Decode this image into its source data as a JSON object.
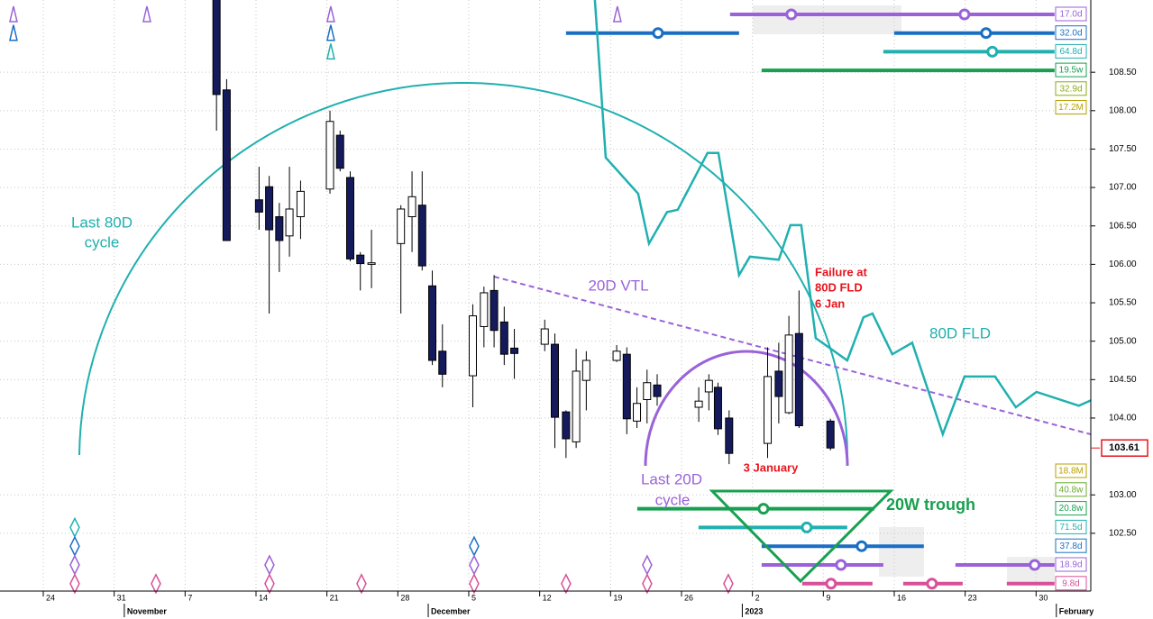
{
  "chart_data": {
    "type": "candlestick",
    "xlim": [
      -4.27,
      103.4
    ],
    "ylim": [
      101.76,
      109.44
    ],
    "grid": true,
    "xticks": [
      {
        "value": 0,
        "label": "24"
      },
      {
        "value": 7,
        "label": "31"
      },
      {
        "value": 14,
        "label": "7"
      },
      {
        "value": 21,
        "label": "14"
      },
      {
        "value": 28,
        "label": "21"
      },
      {
        "value": 35,
        "label": "28"
      },
      {
        "value": 42,
        "label": "5"
      },
      {
        "value": 49,
        "label": "12"
      },
      {
        "value": 56,
        "label": "19"
      },
      {
        "value": 63,
        "label": "26"
      },
      {
        "value": 70,
        "label": "2"
      },
      {
        "value": 77,
        "label": "9"
      },
      {
        "value": 84,
        "label": "16"
      },
      {
        "value": 91,
        "label": "23"
      },
      {
        "value": 98,
        "label": "30"
      }
    ],
    "month_ticks": [
      {
        "value": 8,
        "label": "November"
      },
      {
        "value": 38,
        "label": "December"
      },
      {
        "value": 69,
        "label": "2023"
      },
      {
        "value": 100,
        "label": "February"
      }
    ],
    "yticks": [
      {
        "value": 102.5,
        "label": "102.50"
      },
      {
        "value": 103,
        "label": "103.00"
      },
      {
        "value": 104,
        "label": "104.00"
      },
      {
        "value": 104.5,
        "label": "104.50"
      },
      {
        "value": 105,
        "label": "105.00"
      },
      {
        "value": 105.5,
        "label": "105.50"
      },
      {
        "value": 106,
        "label": "106.00"
      },
      {
        "value": 106.5,
        "label": "106.50"
      },
      {
        "value": 107,
        "label": "107.00"
      },
      {
        "value": 107.5,
        "label": "107.50"
      },
      {
        "value": 108,
        "label": "108.00"
      },
      {
        "value": 108.5,
        "label": "108.50"
      }
    ],
    "last_price": 103.61,
    "last_price_color": "#e8141c",
    "candles": {
      "up_color": "#ffffff",
      "down_color": "#141a5c",
      "x": [
        17.1,
        18.1,
        21.3,
        22.3,
        23.3,
        24.3,
        25.4,
        28.3,
        29.3,
        30.3,
        31.3,
        32.4,
        35.3,
        36.4,
        37.4,
        38.4,
        39.4,
        42.4,
        43.5,
        44.5,
        45.5,
        46.5,
        49.5,
        50.5,
        51.6,
        52.6,
        53.6,
        56.6,
        57.6,
        58.6,
        59.6,
        60.6,
        64.7,
        65.7,
        66.6,
        67.7,
        71.5,
        72.6,
        73.6,
        74.6,
        77.7
      ],
      "open": [
        109.5,
        108.27,
        106.84,
        107.01,
        106.62,
        106.37,
        106.62,
        106.98,
        107.68,
        107.13,
        106.12,
        106.0,
        106.27,
        106.62,
        106.77,
        105.72,
        104.87,
        104.55,
        105.19,
        105.66,
        105.25,
        104.91,
        104.96,
        104.96,
        104.08,
        103.69,
        104.49,
        104.75,
        104.83,
        103.96,
        104.24,
        104.43,
        104.14,
        104.34,
        104.4,
        104.0,
        103.67,
        104.61,
        104.07,
        105.1,
        103.96
      ],
      "high": [
        109.6,
        108.41,
        107.27,
        107.15,
        106.8,
        107.27,
        107.09,
        108.0,
        107.74,
        107.21,
        106.16,
        106.45,
        106.77,
        107.21,
        107.21,
        105.92,
        105.22,
        105.48,
        105.71,
        105.86,
        105.45,
        105.16,
        105.28,
        105.1,
        104.1,
        104.9,
        104.87,
        104.95,
        104.92,
        104.4,
        104.63,
        104.57,
        104.4,
        104.57,
        104.46,
        104.1,
        104.92,
        104.98,
        105.33,
        105.66,
        103.99
      ],
      "low": [
        107.74,
        106.31,
        106.45,
        105.36,
        105.9,
        106.1,
        106.33,
        106.92,
        107.21,
        106.04,
        105.66,
        105.69,
        105.36,
        106.16,
        105.92,
        104.69,
        104.4,
        104.14,
        104.92,
        104.92,
        104.69,
        104.51,
        104.87,
        103.61,
        103.48,
        103.61,
        104.1,
        104.73,
        103.79,
        103.87,
        103.93,
        104.16,
        103.95,
        104.1,
        103.78,
        103.4,
        103.48,
        103.93,
        104.05,
        103.87,
        103.58
      ],
      "close": [
        108.21,
        106.31,
        106.68,
        106.45,
        106.31,
        106.72,
        106.95,
        107.86,
        107.25,
        106.07,
        106.01,
        106.02,
        106.72,
        106.88,
        105.98,
        104.75,
        104.57,
        105.33,
        105.63,
        105.14,
        104.83,
        104.84,
        105.16,
        104.01,
        103.73,
        104.61,
        104.75,
        104.87,
        103.99,
        104.19,
        104.46,
        104.28,
        104.22,
        104.49,
        103.86,
        103.54,
        104.54,
        104.28,
        105.08,
        103.9,
        103.61
      ]
    },
    "fld": {
      "color": "#20b0b0",
      "x": [
        54.45,
        55.52,
        58.72,
        59.79,
        61.57,
        62.63,
        65.57,
        66.64,
        68.68,
        69.75,
        72.6,
        73.75,
        74.82,
        76.25,
        79.36,
        80.96,
        81.85,
        83.81,
        85.77,
        88.79,
        90.93,
        93.95,
        96.0,
        98.04,
        102.22,
        103.4
      ],
      "values": [
        109.44,
        107.39,
        106.92,
        106.27,
        106.68,
        106.71,
        107.45,
        107.45,
        105.86,
        106.1,
        106.06,
        106.51,
        106.51,
        105.04,
        104.75,
        105.31,
        105.36,
        104.83,
        104.98,
        103.79,
        104.54,
        104.54,
        104.14,
        104.34,
        104.16,
        104.23
      ]
    },
    "top_rows": [
      {
        "label": "17.0d",
        "color": "#9a62d8",
        "segments": [
          [
            67.79,
            99.82
          ]
        ],
        "markers": [
          73.84,
          90.93
        ],
        "troughs": [
          -2.94,
          10.23,
          28.38,
          56.67
        ]
      },
      {
        "label": "32.0d",
        "color": "#1a6fc4",
        "segments": [
          [
            51.6,
            68.68
          ],
          [
            83.99,
            99.82
          ]
        ],
        "markers": [
          60.68,
          93.06
        ],
        "troughs": [
          -2.94,
          28.38
        ]
      },
      {
        "label": "64.8d",
        "color": "#20b0b0",
        "segments": [
          [
            82.92,
            99.82
          ]
        ],
        "markers": [
          93.68
        ],
        "troughs": [
          28.38
        ]
      },
      {
        "label": "19.5w",
        "color": "#18a050",
        "segments": [
          [
            70.91,
            99.82
          ]
        ]
      },
      {
        "label": "32.9d",
        "color": "#8aaa10"
      },
      {
        "label": "17.2M",
        "color": "#b8a000"
      }
    ],
    "bottom_rows": [
      {
        "label": "18.8M",
        "color": "#b8a000"
      },
      {
        "label": "40.8w",
        "color": "#6aaa30"
      },
      {
        "label": "20.8w",
        "color": "#18a050",
        "segments": [
          [
            58.63,
            82.03
          ]
        ],
        "markers": [
          71.09
        ]
      },
      {
        "label": "71.5d",
        "color": "#20b0b0",
        "segments": [
          [
            64.68,
            79.36
          ]
        ],
        "markers": [
          75.36
        ],
        "troughs": [
          3.11
        ]
      },
      {
        "label": "37.8d",
        "color": "#1a6fc4",
        "segments": [
          [
            70.91,
            86.92
          ]
        ],
        "markers": [
          80.78
        ],
        "troughs": [
          3.11,
          42.53
        ]
      },
      {
        "label": "18.9d",
        "color": "#9a62d8",
        "segments": [
          [
            70.91,
            82.92
          ],
          [
            90.04,
            99.82
          ]
        ],
        "markers": [
          78.74,
          97.86
        ],
        "troughs": [
          3.11,
          22.33,
          42.53,
          59.61
        ]
      },
      {
        "label": "9.8d",
        "color": "#d8509a",
        "segments": [
          [
            74.91,
            81.85
          ],
          [
            84.88,
            90.75
          ],
          [
            95.11,
            99.82
          ]
        ],
        "markers": [
          77.76,
          87.72
        ],
        "troughs": [
          3.11,
          11.12,
          22.33,
          31.41,
          42.53,
          51.6,
          59.61,
          67.62
        ]
      }
    ],
    "annotations": {
      "last_80d_cycle": [
        "Last 80D",
        "cycle"
      ],
      "vtl": "20D VTL",
      "fld": "80D FLD",
      "failure": [
        "Failure at",
        "80D FLD",
        "6 Jan"
      ],
      "low": "3 January",
      "last_20d_cycle": [
        "Last 20D",
        "cycle"
      ],
      "trough": "20W trough"
    }
  }
}
